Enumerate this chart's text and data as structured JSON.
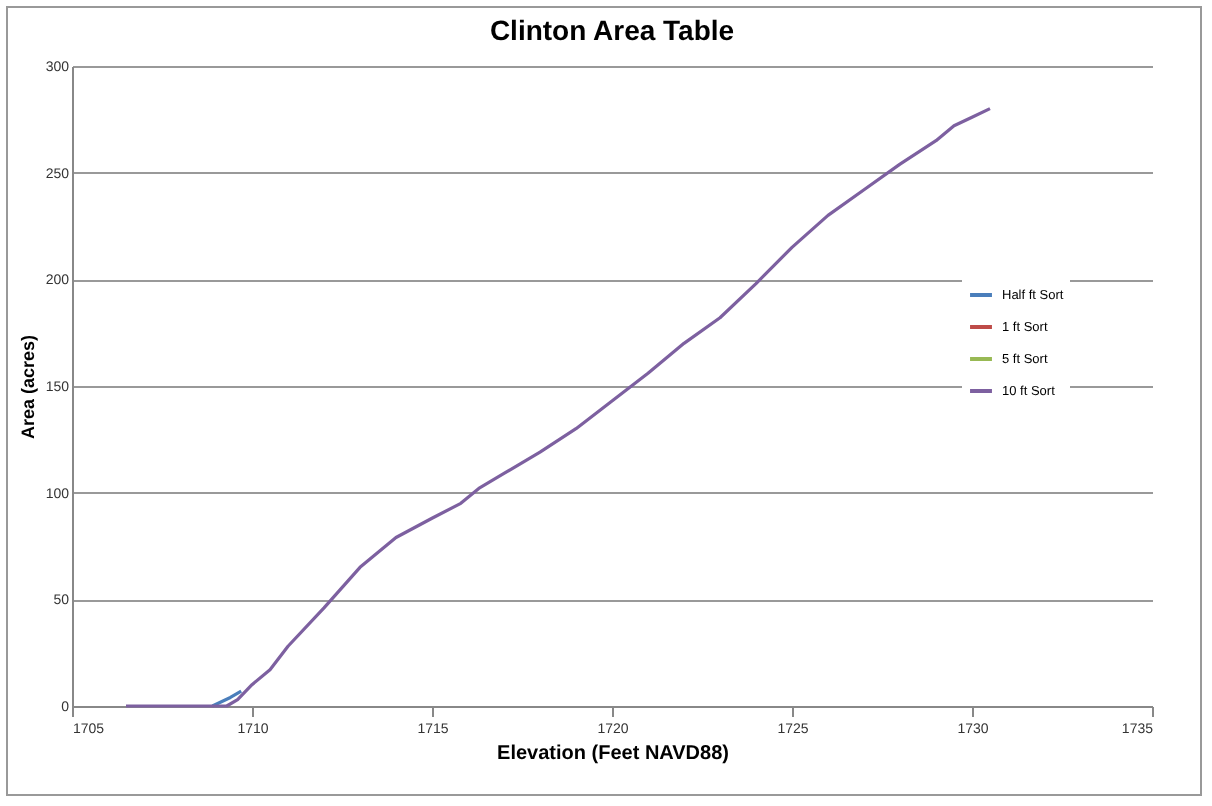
{
  "chart_data": {
    "type": "line",
    "title": "Clinton Area Table",
    "xlabel": "Elevation (Feet NAVD88)",
    "ylabel": "Area (acres)",
    "xlim": [
      1705,
      1735
    ],
    "xticks": [
      1705,
      1710,
      1715,
      1720,
      1725,
      1730,
      1735
    ],
    "ylim": [
      0,
      300
    ],
    "yticks": [
      0,
      50,
      100,
      150,
      200,
      250,
      300
    ],
    "grid": "y",
    "legend": "right",
    "series": [
      {
        "name": "Half ft Sort",
        "color": "#4a7ebb",
        "x": [
          1708.9,
          1709.4,
          1709.7
        ],
        "values": [
          0,
          4,
          7
        ]
      },
      {
        "name": "1 ft Sort",
        "color": "#be4b48"
      },
      {
        "name": "5 ft Sort",
        "color": "#98b954"
      },
      {
        "name": "10 ft Sort",
        "color": "#7d60a0",
        "x": [
          1706.5,
          1709.3,
          1709.6,
          1710,
          1710.5,
          1711,
          1712,
          1713,
          1714,
          1715,
          1715.8,
          1716.3,
          1717,
          1718,
          1719,
          1720,
          1721,
          1722,
          1723,
          1724,
          1725,
          1726,
          1727,
          1728,
          1729,
          1729.5,
          1730,
          1730.5
        ],
        "values": [
          0,
          0,
          3,
          10,
          17,
          28,
          46,
          65,
          79,
          88,
          95,
          102,
          109,
          119,
          130,
          143,
          156,
          170,
          182,
          198,
          215,
          230,
          242,
          254,
          265,
          272,
          276,
          280
        ]
      }
    ]
  }
}
